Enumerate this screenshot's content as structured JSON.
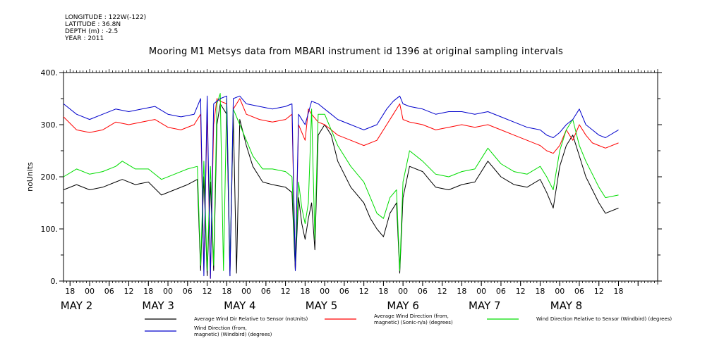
{
  "meta": {
    "longitude": "LONGITUDE : 122W(-122)",
    "latitude": "LATITUDE : 36.8N",
    "depth": "DEPTH (m) : -2.5",
    "year": "YEAR : 2011"
  },
  "chart_data": {
    "type": "line",
    "title": "Mooring M1 Metsys data from MBARI instrument id 1396 at original sampling intervals",
    "ylabel": "noUnits",
    "xlabel": "",
    "ylim": [
      0,
      400
    ],
    "xlim_hours": [
      -8,
      174
    ],
    "y_ticks": [
      0,
      100,
      200,
      300,
      400
    ],
    "y_tick_labels": [
      "0.",
      "100.",
      "200.",
      "300.",
      "400."
    ],
    "x_tick_hours": [
      -6,
      0,
      6,
      12,
      18,
      24,
      30,
      36,
      42,
      48,
      54,
      60,
      66,
      72,
      78,
      84,
      90,
      96,
      102,
      108,
      114,
      120,
      126,
      132,
      138,
      144,
      150,
      156,
      162,
      168
    ],
    "x_tick_labels": [
      "18",
      "00",
      "06",
      "12",
      "18",
      "00",
      "06",
      "12",
      "18",
      "00",
      "06",
      "12",
      "18",
      "00",
      "06",
      "12",
      "18",
      "00",
      "06",
      "12",
      "18",
      "00",
      "06",
      "12",
      "18",
      "00",
      "06",
      "12",
      "18",
      ""
    ],
    "date_labels": [
      {
        "text": "MAY  2",
        "hour": -4
      },
      {
        "text": "MAY  3",
        "hour": 21
      },
      {
        "text": "MAY  4",
        "hour": 46
      },
      {
        "text": "MAY  5",
        "hour": 71
      },
      {
        "text": "MAY  6",
        "hour": 96
      },
      {
        "text": "MAY  7",
        "hour": 121
      },
      {
        "text": "MAY  8",
        "hour": 146
      }
    ],
    "series": [
      {
        "name": "Average Wind Dir Relative to Sensor (noUnits)",
        "color": "#000000",
        "points": [
          [
            -8,
            175
          ],
          [
            -4,
            185
          ],
          [
            0,
            175
          ],
          [
            4,
            180
          ],
          [
            8,
            190
          ],
          [
            10,
            195
          ],
          [
            14,
            185
          ],
          [
            18,
            190
          ],
          [
            22,
            165
          ],
          [
            26,
            175
          ],
          [
            30,
            185
          ],
          [
            33,
            195
          ],
          [
            34,
            20
          ],
          [
            35,
            200
          ],
          [
            36,
            10
          ],
          [
            37,
            190
          ],
          [
            38,
            20
          ],
          [
            39,
            300
          ],
          [
            40,
            340
          ],
          [
            42,
            320
          ],
          [
            43,
            10
          ],
          [
            44,
            320
          ],
          [
            45,
            15
          ],
          [
            46,
            310
          ],
          [
            48,
            260
          ],
          [
            50,
            220
          ],
          [
            53,
            190
          ],
          [
            56,
            185
          ],
          [
            60,
            180
          ],
          [
            62,
            170
          ],
          [
            63,
            20
          ],
          [
            64,
            160
          ],
          [
            65,
            110
          ],
          [
            66,
            80
          ],
          [
            67,
            120
          ],
          [
            68,
            150
          ],
          [
            69,
            60
          ],
          [
            70,
            280
          ],
          [
            72,
            300
          ],
          [
            74,
            280
          ],
          [
            76,
            230
          ],
          [
            80,
            180
          ],
          [
            84,
            150
          ],
          [
            86,
            120
          ],
          [
            88,
            100
          ],
          [
            90,
            85
          ],
          [
            92,
            130
          ],
          [
            94,
            150
          ],
          [
            95,
            15
          ],
          [
            96,
            160
          ],
          [
            98,
            220
          ],
          [
            102,
            210
          ],
          [
            106,
            180
          ],
          [
            110,
            175
          ],
          [
            114,
            185
          ],
          [
            118,
            190
          ],
          [
            122,
            230
          ],
          [
            126,
            200
          ],
          [
            130,
            185
          ],
          [
            134,
            180
          ],
          [
            138,
            195
          ],
          [
            140,
            170
          ],
          [
            142,
            140
          ],
          [
            144,
            220
          ],
          [
            146,
            260
          ],
          [
            148,
            280
          ],
          [
            150,
            240
          ],
          [
            152,
            200
          ],
          [
            154,
            175
          ],
          [
            156,
            150
          ],
          [
            158,
            130
          ],
          [
            162,
            140
          ]
        ]
      },
      {
        "name": "Average Wind Direction (from, magnetic) (Sonic-n/a) (degrees)",
        "color": "#ff0000",
        "points": [
          [
            -8,
            315
          ],
          [
            -4,
            290
          ],
          [
            0,
            285
          ],
          [
            4,
            290
          ],
          [
            8,
            305
          ],
          [
            12,
            300
          ],
          [
            16,
            305
          ],
          [
            20,
            310
          ],
          [
            24,
            295
          ],
          [
            28,
            290
          ],
          [
            32,
            300
          ],
          [
            34,
            320
          ],
          [
            35,
            20
          ],
          [
            36,
            330
          ],
          [
            37,
            5
          ],
          [
            38,
            300
          ],
          [
            39,
            350
          ],
          [
            40,
            345
          ],
          [
            42,
            340
          ],
          [
            43,
            20
          ],
          [
            44,
            330
          ],
          [
            46,
            350
          ],
          [
            48,
            320
          ],
          [
            52,
            310
          ],
          [
            56,
            305
          ],
          [
            60,
            310
          ],
          [
            62,
            320
          ],
          [
            63,
            25
          ],
          [
            64,
            300
          ],
          [
            66,
            270
          ],
          [
            67,
            330
          ],
          [
            68,
            320
          ],
          [
            70,
            305
          ],
          [
            72,
            300
          ],
          [
            74,
            290
          ],
          [
            76,
            280
          ],
          [
            80,
            270
          ],
          [
            84,
            260
          ],
          [
            88,
            270
          ],
          [
            91,
            300
          ],
          [
            93,
            320
          ],
          [
            95,
            340
          ],
          [
            96,
            310
          ],
          [
            98,
            305
          ],
          [
            102,
            300
          ],
          [
            106,
            290
          ],
          [
            110,
            295
          ],
          [
            114,
            300
          ],
          [
            118,
            295
          ],
          [
            122,
            300
          ],
          [
            126,
            290
          ],
          [
            130,
            280
          ],
          [
            134,
            270
          ],
          [
            138,
            260
          ],
          [
            140,
            250
          ],
          [
            142,
            245
          ],
          [
            144,
            260
          ],
          [
            146,
            290
          ],
          [
            148,
            270
          ],
          [
            150,
            300
          ],
          [
            152,
            280
          ],
          [
            154,
            265
          ],
          [
            156,
            260
          ],
          [
            158,
            255
          ],
          [
            162,
            265
          ]
        ]
      },
      {
        "name": "Wind Direction Relative to Sensor (Windbird) (degrees)",
        "color": "#00dd00",
        "points": [
          [
            -8,
            200
          ],
          [
            -4,
            215
          ],
          [
            0,
            205
          ],
          [
            4,
            210
          ],
          [
            8,
            220
          ],
          [
            10,
            230
          ],
          [
            14,
            215
          ],
          [
            18,
            215
          ],
          [
            22,
            195
          ],
          [
            26,
            205
          ],
          [
            30,
            215
          ],
          [
            33,
            220
          ],
          [
            34,
            30
          ],
          [
            35,
            230
          ],
          [
            36,
            20
          ],
          [
            37,
            220
          ],
          [
            38,
            30
          ],
          [
            39,
            340
          ],
          [
            40,
            360
          ],
          [
            41,
            20
          ],
          [
            42,
            350
          ],
          [
            43,
            30
          ],
          [
            44,
            330
          ],
          [
            46,
            300
          ],
          [
            48,
            270
          ],
          [
            50,
            240
          ],
          [
            53,
            215
          ],
          [
            56,
            215
          ],
          [
            60,
            210
          ],
          [
            62,
            200
          ],
          [
            63,
            30
          ],
          [
            64,
            190
          ],
          [
            65,
            140
          ],
          [
            66,
            110
          ],
          [
            67,
            150
          ],
          [
            68,
            330
          ],
          [
            69,
            80
          ],
          [
            70,
            320
          ],
          [
            72,
            320
          ],
          [
            74,
            290
          ],
          [
            76,
            260
          ],
          [
            80,
            220
          ],
          [
            84,
            190
          ],
          [
            86,
            160
          ],
          [
            88,
            130
          ],
          [
            90,
            120
          ],
          [
            92,
            160
          ],
          [
            94,
            175
          ],
          [
            95,
            20
          ],
          [
            96,
            190
          ],
          [
            98,
            250
          ],
          [
            102,
            230
          ],
          [
            106,
            205
          ],
          [
            110,
            200
          ],
          [
            114,
            210
          ],
          [
            118,
            215
          ],
          [
            122,
            255
          ],
          [
            126,
            225
          ],
          [
            130,
            210
          ],
          [
            134,
            205
          ],
          [
            138,
            220
          ],
          [
            140,
            200
          ],
          [
            142,
            175
          ],
          [
            144,
            250
          ],
          [
            146,
            290
          ],
          [
            148,
            310
          ],
          [
            150,
            260
          ],
          [
            152,
            230
          ],
          [
            154,
            205
          ],
          [
            156,
            180
          ],
          [
            158,
            160
          ],
          [
            162,
            165
          ]
        ]
      },
      {
        "name": "Wind Direction (from, magnetic) (Windbird) (degrees)",
        "color": "#0000cc",
        "points": [
          [
            -8,
            340
          ],
          [
            -4,
            320
          ],
          [
            0,
            310
          ],
          [
            4,
            320
          ],
          [
            8,
            330
          ],
          [
            12,
            325
          ],
          [
            16,
            330
          ],
          [
            20,
            335
          ],
          [
            24,
            320
          ],
          [
            28,
            315
          ],
          [
            32,
            320
          ],
          [
            34,
            350
          ],
          [
            35,
            10
          ],
          [
            36,
            355
          ],
          [
            37,
            5
          ],
          [
            38,
            340
          ],
          [
            39,
            345
          ],
          [
            40,
            350
          ],
          [
            42,
            355
          ],
          [
            43,
            10
          ],
          [
            44,
            350
          ],
          [
            46,
            355
          ],
          [
            48,
            340
          ],
          [
            52,
            335
          ],
          [
            56,
            330
          ],
          [
            60,
            335
          ],
          [
            62,
            340
          ],
          [
            63,
            20
          ],
          [
            64,
            320
          ],
          [
            66,
            300
          ],
          [
            68,
            345
          ],
          [
            70,
            340
          ],
          [
            72,
            330
          ],
          [
            74,
            320
          ],
          [
            76,
            310
          ],
          [
            80,
            300
          ],
          [
            84,
            290
          ],
          [
            88,
            300
          ],
          [
            91,
            330
          ],
          [
            93,
            345
          ],
          [
            95,
            355
          ],
          [
            96,
            340
          ],
          [
            98,
            335
          ],
          [
            102,
            330
          ],
          [
            106,
            320
          ],
          [
            110,
            325
          ],
          [
            114,
            325
          ],
          [
            118,
            320
          ],
          [
            122,
            325
          ],
          [
            126,
            315
          ],
          [
            130,
            305
          ],
          [
            134,
            295
          ],
          [
            138,
            290
          ],
          [
            140,
            280
          ],
          [
            142,
            275
          ],
          [
            144,
            285
          ],
          [
            146,
            300
          ],
          [
            148,
            310
          ],
          [
            150,
            330
          ],
          [
            152,
            300
          ],
          [
            154,
            290
          ],
          [
            156,
            280
          ],
          [
            158,
            275
          ],
          [
            162,
            290
          ]
        ]
      }
    ]
  },
  "legend": [
    {
      "line1": "Average Wind Dir Relative to Sensor (noUnits)",
      "line2": "",
      "color": "#000000"
    },
    {
      "line1": "Average Wind Direction (from,",
      "line2": "magnetic) (Sonic-n/a) (degrees)",
      "color": "#ff0000"
    },
    {
      "line1": "Wind Direction Relative to Sensor (Windbird) (degrees)",
      "line2": "",
      "color": "#00dd00"
    },
    {
      "line1": "Wind Direction (from,",
      "line2": "magnetic) (Windbird) (degrees)",
      "color": "#0000cc"
    }
  ]
}
